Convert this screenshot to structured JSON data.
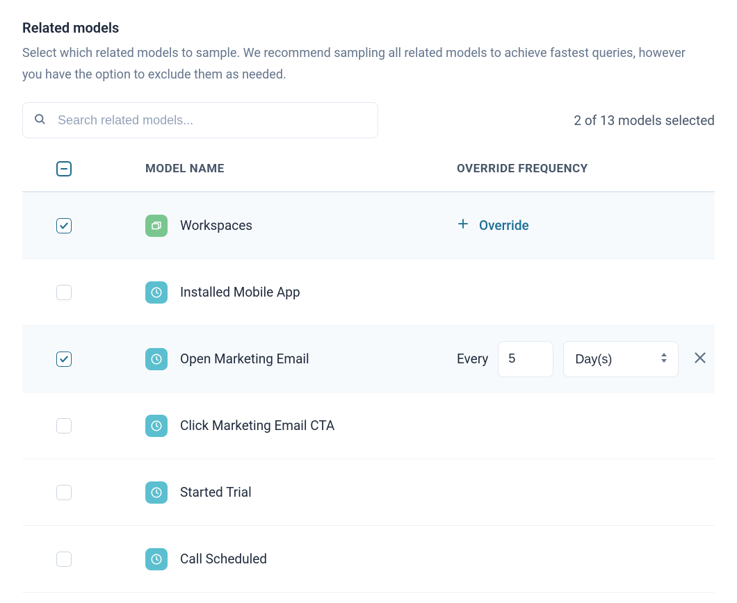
{
  "section": {
    "title": "Related models",
    "description": "Select which related models to sample. We recommend sampling all related models to achieve fastest queries, however you have the option to exclude them as needed."
  },
  "search": {
    "placeholder": "Search related models..."
  },
  "selection_status": "2 of 13 models selected",
  "columns": {
    "model_name": "MODEL NAME",
    "override_frequency": "OVERRIDE FREQUENCY"
  },
  "override_action_label": "Override",
  "frequency_editor": {
    "prefix": "Every",
    "value": "5",
    "unit": "Day(s)"
  },
  "colors": {
    "accent": "#1b6f94",
    "icon_green": "#7ac690",
    "icon_blue": "#5bbfcf",
    "text_primary": "#1e293b",
    "text_secondary": "#64748b",
    "border": "#e2e8f0",
    "row_selected_bg": "#f7fafd"
  },
  "rows": [
    {
      "name": "Workspaces",
      "checked": true,
      "icon": "workspace",
      "override_state": "link"
    },
    {
      "name": "Installed Mobile App",
      "checked": false,
      "icon": "clock",
      "override_state": "none"
    },
    {
      "name": "Open Marketing Email",
      "checked": true,
      "icon": "clock",
      "override_state": "editor"
    },
    {
      "name": "Click Marketing Email CTA",
      "checked": false,
      "icon": "clock",
      "override_state": "none"
    },
    {
      "name": "Started Trial",
      "checked": false,
      "icon": "clock",
      "override_state": "none"
    },
    {
      "name": "Call Scheduled",
      "checked": false,
      "icon": "clock",
      "override_state": "none"
    }
  ]
}
